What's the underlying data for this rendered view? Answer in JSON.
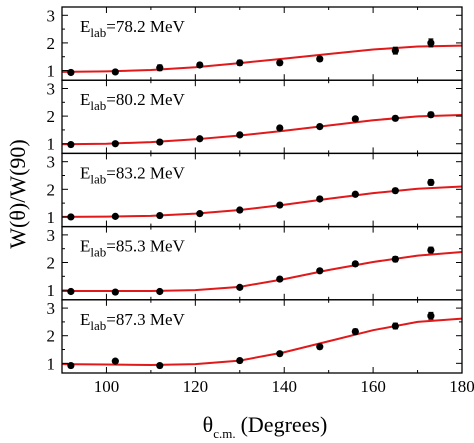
{
  "chart_data": {
    "type": "scatter",
    "layout": "5 vertically stacked panels sharing x axis",
    "xlabel_symbol": "θ",
    "xlabel_subscript": "c.m.",
    "xlabel_unit": "(Degrees)",
    "ylabel": "W(θ)/W(90)",
    "xlim": [
      90,
      180
    ],
    "xticks": [
      100,
      120,
      140,
      160,
      180
    ],
    "ylim": [
      0.65,
      3.3
    ],
    "yticks": [
      1,
      2,
      3
    ],
    "fit_color": "#e0191b",
    "panels": [
      {
        "label_prefix": "E",
        "label_subscript": "lab",
        "label_value": "=78.2 MeV",
        "points": [
          {
            "x": 92,
            "y": 0.93,
            "err": 0.07
          },
          {
            "x": 102,
            "y": 0.95,
            "err": 0.06
          },
          {
            "x": 112,
            "y": 1.1,
            "err": 0.1
          },
          {
            "x": 121,
            "y": 1.2,
            "err": 0.08
          },
          {
            "x": 130,
            "y": 1.28,
            "err": 0.09
          },
          {
            "x": 139,
            "y": 1.28,
            "err": 0.08
          },
          {
            "x": 148,
            "y": 1.42,
            "err": 0.08
          },
          {
            "x": 165,
            "y": 1.72,
            "err": 0.12
          },
          {
            "x": 173,
            "y": 2.0,
            "err": 0.14
          }
        ],
        "fit": {
          "x": [
            90,
            100,
            110,
            120,
            130,
            140,
            150,
            160,
            170,
            180
          ],
          "y": [
            0.95,
            0.97,
            1.02,
            1.12,
            1.27,
            1.43,
            1.6,
            1.76,
            1.87,
            1.9
          ]
        }
      },
      {
        "label_prefix": "E",
        "label_subscript": "lab",
        "label_value": "=80.2 MeV",
        "points": [
          {
            "x": 92,
            "y": 0.97,
            "err": 0.06
          },
          {
            "x": 102,
            "y": 1.0,
            "err": 0.06
          },
          {
            "x": 112,
            "y": 1.06,
            "err": 0.06
          },
          {
            "x": 121,
            "y": 1.18,
            "err": 0.06
          },
          {
            "x": 130,
            "y": 1.32,
            "err": 0.07
          },
          {
            "x": 139,
            "y": 1.57,
            "err": 0.07
          },
          {
            "x": 148,
            "y": 1.62,
            "err": 0.07
          },
          {
            "x": 156,
            "y": 1.9,
            "err": 0.08
          },
          {
            "x": 165,
            "y": 1.92,
            "err": 0.08
          },
          {
            "x": 173,
            "y": 2.05,
            "err": 0.09
          }
        ],
        "fit": {
          "x": [
            90,
            100,
            110,
            120,
            130,
            140,
            150,
            160,
            170,
            180
          ],
          "y": [
            0.98,
            1.0,
            1.06,
            1.16,
            1.3,
            1.47,
            1.66,
            1.85,
            1.99,
            2.04
          ]
        }
      },
      {
        "label_prefix": "E",
        "label_subscript": "lab",
        "label_value": "=83.2 MeV",
        "points": [
          {
            "x": 92,
            "y": 1.0,
            "err": 0.05
          },
          {
            "x": 102,
            "y": 1.02,
            "err": 0.05
          },
          {
            "x": 112,
            "y": 1.05,
            "err": 0.05
          },
          {
            "x": 121,
            "y": 1.12,
            "err": 0.05
          },
          {
            "x": 130,
            "y": 1.25,
            "err": 0.06
          },
          {
            "x": 139,
            "y": 1.43,
            "err": 0.06
          },
          {
            "x": 148,
            "y": 1.65,
            "err": 0.07
          },
          {
            "x": 156,
            "y": 1.82,
            "err": 0.07
          },
          {
            "x": 165,
            "y": 1.95,
            "err": 0.08
          },
          {
            "x": 173,
            "y": 2.25,
            "err": 0.1
          }
        ],
        "fit": {
          "x": [
            90,
            100,
            110,
            120,
            130,
            140,
            150,
            160,
            170,
            180
          ],
          "y": [
            1.0,
            1.01,
            1.04,
            1.12,
            1.25,
            1.44,
            1.66,
            1.86,
            2.02,
            2.1
          ]
        }
      },
      {
        "label_prefix": "E",
        "label_subscript": "lab",
        "label_value": "=85.3 MeV",
        "points": [
          {
            "x": 92,
            "y": 0.95,
            "err": 0.05
          },
          {
            "x": 102,
            "y": 0.93,
            "err": 0.05
          },
          {
            "x": 112,
            "y": 0.95,
            "err": 0.05
          },
          {
            "x": 130,
            "y": 1.1,
            "err": 0.06
          },
          {
            "x": 139,
            "y": 1.4,
            "err": 0.06
          },
          {
            "x": 148,
            "y": 1.7,
            "err": 0.07
          },
          {
            "x": 156,
            "y": 1.95,
            "err": 0.08
          },
          {
            "x": 165,
            "y": 2.12,
            "err": 0.09
          },
          {
            "x": 173,
            "y": 2.45,
            "err": 0.1
          }
        ],
        "fit": {
          "x": [
            90,
            100,
            110,
            120,
            130,
            140,
            150,
            160,
            170,
            180
          ],
          "y": [
            0.97,
            0.97,
            0.97,
            1.0,
            1.12,
            1.4,
            1.73,
            2.02,
            2.25,
            2.38
          ]
        }
      },
      {
        "label_prefix": "E",
        "label_subscript": "lab",
        "label_value": "=87.3 MeV",
        "points": [
          {
            "x": 92,
            "y": 0.92,
            "err": 0.06
          },
          {
            "x": 102,
            "y": 1.08,
            "err": 0.06
          },
          {
            "x": 112,
            "y": 0.92,
            "err": 0.05
          },
          {
            "x": 130,
            "y": 1.1,
            "err": 0.06
          },
          {
            "x": 139,
            "y": 1.35,
            "err": 0.06
          },
          {
            "x": 148,
            "y": 1.6,
            "err": 0.08
          },
          {
            "x": 156,
            "y": 2.15,
            "err": 0.09
          },
          {
            "x": 165,
            "y": 2.35,
            "err": 0.1
          },
          {
            "x": 173,
            "y": 2.72,
            "err": 0.12
          }
        ],
        "fit": {
          "x": [
            90,
            100,
            110,
            120,
            130,
            140,
            150,
            160,
            170,
            180
          ],
          "y": [
            0.97,
            0.96,
            0.94,
            0.97,
            1.1,
            1.4,
            1.8,
            2.2,
            2.5,
            2.62
          ]
        }
      }
    ]
  }
}
